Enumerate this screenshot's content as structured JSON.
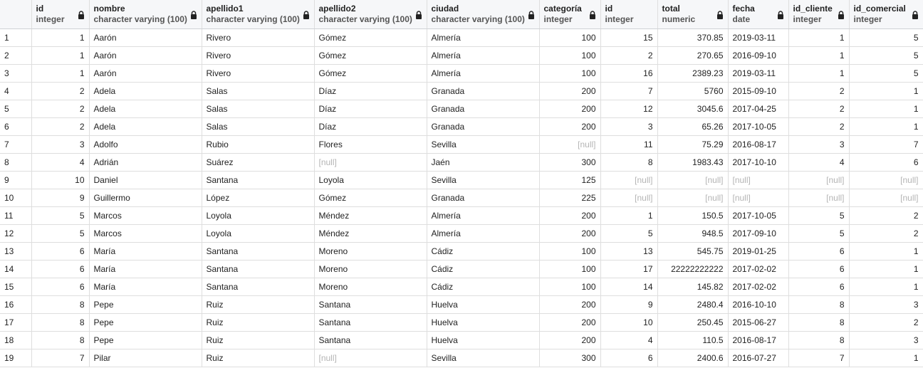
{
  "columns": [
    {
      "key": "id",
      "name": "id",
      "type": "integer",
      "align": "num"
    },
    {
      "key": "nombre",
      "name": "nombre",
      "type": "character varying (100)",
      "align": "txt"
    },
    {
      "key": "apellido1",
      "name": "apellido1",
      "type": "character varying (100)",
      "align": "txt"
    },
    {
      "key": "apellido2",
      "name": "apellido2",
      "type": "character varying (100)",
      "align": "txt"
    },
    {
      "key": "ciudad",
      "name": "ciudad",
      "type": "character varying (100)",
      "align": "txt"
    },
    {
      "key": "categoria",
      "name": "categoría",
      "type": "integer",
      "align": "num"
    },
    {
      "key": "id2",
      "name": "id",
      "type": "integer",
      "align": "num"
    },
    {
      "key": "total",
      "name": "total",
      "type": "numeric",
      "align": "num"
    },
    {
      "key": "fecha",
      "name": "fecha",
      "type": "date",
      "align": "txt"
    },
    {
      "key": "id_cliente",
      "name": "id_cliente",
      "type": "integer",
      "align": "num"
    },
    {
      "key": "id_comercial",
      "name": "id_comercial",
      "type": "integer",
      "align": "num"
    }
  ],
  "null_label": "[null]",
  "rows": [
    [
      "1",
      "1",
      "Aarón",
      "Rivero",
      "Gómez",
      "Almería",
      "100",
      "15",
      "370.85",
      "2019-03-11",
      "1",
      "5"
    ],
    [
      "2",
      "1",
      "Aarón",
      "Rivero",
      "Gómez",
      "Almería",
      "100",
      "2",
      "270.65",
      "2016-09-10",
      "1",
      "5"
    ],
    [
      "3",
      "1",
      "Aarón",
      "Rivero",
      "Gómez",
      "Almería",
      "100",
      "16",
      "2389.23",
      "2019-03-11",
      "1",
      "5"
    ],
    [
      "4",
      "2",
      "Adela",
      "Salas",
      "Díaz",
      "Granada",
      "200",
      "7",
      "5760",
      "2015-09-10",
      "2",
      "1"
    ],
    [
      "5",
      "2",
      "Adela",
      "Salas",
      "Díaz",
      "Granada",
      "200",
      "12",
      "3045.6",
      "2017-04-25",
      "2",
      "1"
    ],
    [
      "6",
      "2",
      "Adela",
      "Salas",
      "Díaz",
      "Granada",
      "200",
      "3",
      "65.26",
      "2017-10-05",
      "2",
      "1"
    ],
    [
      "7",
      "3",
      "Adolfo",
      "Rubio",
      "Flores",
      "Sevilla",
      null,
      "11",
      "75.29",
      "2016-08-17",
      "3",
      "7"
    ],
    [
      "8",
      "4",
      "Adrián",
      "Suárez",
      null,
      "Jaén",
      "300",
      "8",
      "1983.43",
      "2017-10-10",
      "4",
      "6"
    ],
    [
      "9",
      "10",
      "Daniel",
      "Santana",
      "Loyola",
      "Sevilla",
      "125",
      null,
      null,
      null,
      null,
      null
    ],
    [
      "10",
      "9",
      "Guillermo",
      "López",
      "Gómez",
      "Granada",
      "225",
      null,
      null,
      null,
      null,
      null
    ],
    [
      "11",
      "5",
      "Marcos",
      "Loyola",
      "Méndez",
      "Almería",
      "200",
      "1",
      "150.5",
      "2017-10-05",
      "5",
      "2"
    ],
    [
      "12",
      "5",
      "Marcos",
      "Loyola",
      "Méndez",
      "Almería",
      "200",
      "5",
      "948.5",
      "2017-09-10",
      "5",
      "2"
    ],
    [
      "13",
      "6",
      "María",
      "Santana",
      "Moreno",
      "Cádiz",
      "100",
      "13",
      "545.75",
      "2019-01-25",
      "6",
      "1"
    ],
    [
      "14",
      "6",
      "María",
      "Santana",
      "Moreno",
      "Cádiz",
      "100",
      "17",
      "22222222222",
      "2017-02-02",
      "6",
      "1"
    ],
    [
      "15",
      "6",
      "María",
      "Santana",
      "Moreno",
      "Cádiz",
      "100",
      "14",
      "145.82",
      "2017-02-02",
      "6",
      "1"
    ],
    [
      "16",
      "8",
      "Pepe",
      "Ruiz",
      "Santana",
      "Huelva",
      "200",
      "9",
      "2480.4",
      "2016-10-10",
      "8",
      "3"
    ],
    [
      "17",
      "8",
      "Pepe",
      "Ruiz",
      "Santana",
      "Huelva",
      "200",
      "10",
      "250.45",
      "2015-06-27",
      "8",
      "2"
    ],
    [
      "18",
      "8",
      "Pepe",
      "Ruiz",
      "Santana",
      "Huelva",
      "200",
      "4",
      "110.5",
      "2016-08-17",
      "8",
      "3"
    ],
    [
      "19",
      "7",
      "Pilar",
      "Ruiz",
      null,
      "Sevilla",
      "300",
      "6",
      "2400.6",
      "2016-07-27",
      "7",
      "1"
    ]
  ]
}
